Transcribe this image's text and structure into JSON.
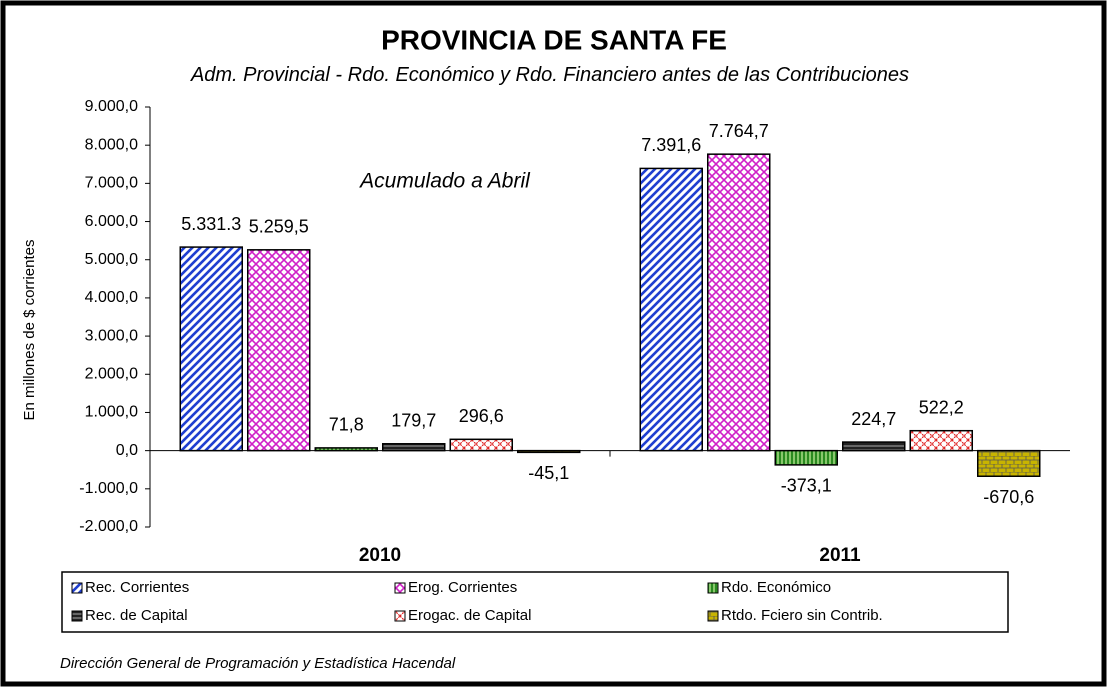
{
  "chart_data": {
    "type": "bar",
    "title": "PROVINCIA DE SANTA FE",
    "subtitle": "Adm. Provincial - Rdo. Económico y Rdo. Financiero antes de las Contribuciones",
    "annotation": "Acumulado a Abril",
    "y_label": "En millones de $ corrientes",
    "footer": "Dirección General de Programación y Estadística Hacendal",
    "categories": [
      "2010",
      "2011"
    ],
    "ylim": [
      -2000,
      9000
    ],
    "yticks": [
      {
        "value": -2000,
        "label": "-2.000,0"
      },
      {
        "value": -1000,
        "label": "-1.000,0"
      },
      {
        "value": 0,
        "label": "0,0"
      },
      {
        "value": 1000,
        "label": "1.000,0"
      },
      {
        "value": 2000,
        "label": "2.000,0"
      },
      {
        "value": 3000,
        "label": "3.000,0"
      },
      {
        "value": 4000,
        "label": "4.000,0"
      },
      {
        "value": 5000,
        "label": "5.000,0"
      },
      {
        "value": 6000,
        "label": "6.000,0"
      },
      {
        "value": 7000,
        "label": "7.000,0"
      },
      {
        "value": 8000,
        "label": "8.000,0"
      },
      {
        "value": 9000,
        "label": "9.000,0"
      }
    ],
    "series": [
      {
        "name": "Rec. Corrientes",
        "color": "#1f3fd0",
        "pattern": "diagonal",
        "values": [
          5331.3,
          7391.6
        ],
        "value_labels": [
          "5.331.3",
          "7.391,6"
        ]
      },
      {
        "name": "Erog. Corrientes",
        "color": "#d020c8",
        "pattern": "crosshatch",
        "values": [
          5259.5,
          7764.7
        ],
        "value_labels": [
          "5.259,5",
          "7.764,7"
        ]
      },
      {
        "name": "Rdo. Económico",
        "color": "#2a8a20",
        "pattern": "vertical",
        "values": [
          71.8,
          -373.1
        ],
        "value_labels": [
          "71,8",
          "-373,1"
        ]
      },
      {
        "name": "Rec. de Capital",
        "color": "#222222",
        "pattern": "horizontal",
        "values": [
          179.7,
          224.7
        ],
        "value_labels": [
          "179,7",
          "224,7"
        ]
      },
      {
        "name": "Erogac. de Capital",
        "color": "#e02020",
        "pattern": "dots",
        "values": [
          296.6,
          522.2
        ],
        "value_labels": [
          "296,6",
          "522,2"
        ]
      },
      {
        "name": "Rtdo. Fciero sin Contrib.",
        "color": "#c8b400",
        "pattern": "brick",
        "values": [
          -45.1,
          -670.6
        ],
        "value_labels": [
          "-45,1",
          "-670,6"
        ]
      }
    ]
  }
}
